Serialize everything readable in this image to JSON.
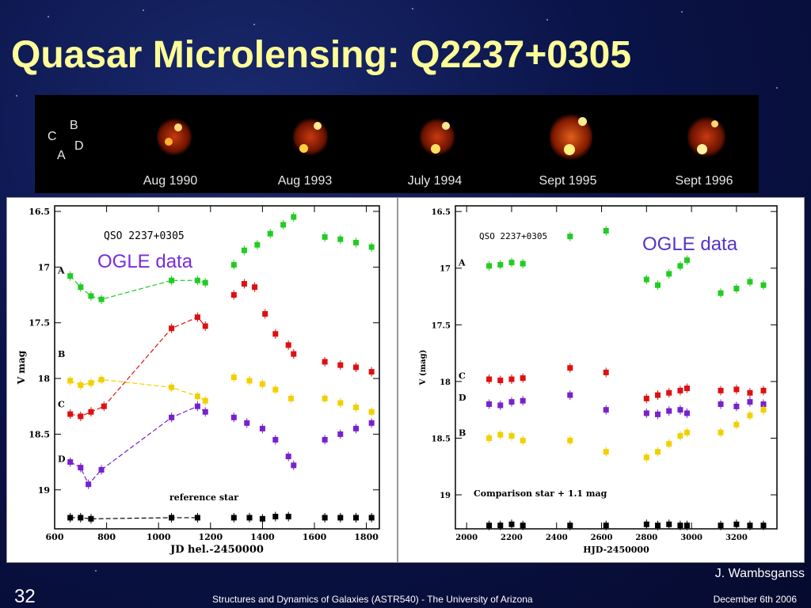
{
  "slide": {
    "title": "Quasar Microlensing: Q2237+0305",
    "credit": "J. Wambsganss",
    "number": "32",
    "footer_course": "Structures and Dynamics of Galaxies (ASTR540) - The University of Arizona",
    "footer_date": "December 6th 2006"
  },
  "image_strip": {
    "image_labels": [
      "B",
      "C",
      "D",
      "A"
    ],
    "frames": [
      {
        "caption": "Aug 1990"
      },
      {
        "caption": "Aug 1993"
      },
      {
        "caption": "July 1994"
      },
      {
        "caption": "Sept 1995"
      },
      {
        "caption": "Sept 1996"
      }
    ]
  },
  "chart_data": [
    {
      "type": "scatter",
      "title": "QSO 2237+0305",
      "annotation": "OGLE data",
      "annotation_color": "#7a2be0",
      "xlabel": "JD hel.-2450000",
      "ylabel": "V mag",
      "xlim": [
        600,
        1850
      ],
      "ylim": [
        16.45,
        19.35
      ],
      "y_inverted": true,
      "xticks": [
        600,
        800,
        1000,
        1200,
        1400,
        1600,
        1800
      ],
      "yticks": [
        "16.5",
        "17",
        "17.5",
        "18",
        "18.5",
        "19"
      ],
      "reference_label": "reference star",
      "series": [
        {
          "name": "A",
          "color": "#22cc22",
          "points": [
            [
              660,
              17.08
            ],
            [
              700,
              17.18
            ],
            [
              740,
              17.26
            ],
            [
              780,
              17.29
            ],
            [
              1050,
              17.12
            ],
            [
              1150,
              17.12
            ],
            [
              1180,
              17.14
            ],
            [
              1290,
              16.98
            ],
            [
              1330,
              16.85
            ],
            [
              1380,
              16.8
            ],
            [
              1430,
              16.7
            ],
            [
              1480,
              16.62
            ],
            [
              1520,
              16.55
            ],
            [
              1640,
              16.73
            ],
            [
              1700,
              16.75
            ],
            [
              1760,
              16.78
            ],
            [
              1820,
              16.82
            ]
          ]
        },
        {
          "name": "B",
          "color": "#f2d000",
          "points": [
            [
              660,
              18.02
            ],
            [
              700,
              18.06
            ],
            [
              740,
              18.04
            ],
            [
              780,
              18.01
            ],
            [
              1050,
              18.08
            ],
            [
              1150,
              18.16
            ],
            [
              1180,
              18.2
            ],
            [
              1290,
              17.99
            ],
            [
              1350,
              18.02
            ],
            [
              1400,
              18.05
            ],
            [
              1450,
              18.1
            ],
            [
              1510,
              18.18
            ],
            [
              1640,
              18.18
            ],
            [
              1700,
              18.22
            ],
            [
              1760,
              18.26
            ],
            [
              1820,
              18.3
            ]
          ]
        },
        {
          "name": "C",
          "color": "#dd1111",
          "points": [
            [
              660,
              18.32
            ],
            [
              700,
              18.34
            ],
            [
              740,
              18.3
            ],
            [
              790,
              18.25
            ],
            [
              1050,
              17.55
            ],
            [
              1150,
              17.45
            ],
            [
              1180,
              17.53
            ],
            [
              1290,
              17.25
            ],
            [
              1330,
              17.15
            ],
            [
              1370,
              17.18
            ],
            [
              1410,
              17.42
            ],
            [
              1450,
              17.6
            ],
            [
              1500,
              17.7
            ],
            [
              1520,
              17.78
            ],
            [
              1640,
              17.85
            ],
            [
              1700,
              17.88
            ],
            [
              1760,
              17.9
            ],
            [
              1820,
              17.94
            ]
          ]
        },
        {
          "name": "D",
          "color": "#7722cc",
          "points": [
            [
              660,
              18.75
            ],
            [
              700,
              18.8
            ],
            [
              730,
              18.95
            ],
            [
              780,
              18.82
            ],
            [
              1050,
              18.35
            ],
            [
              1150,
              18.25
            ],
            [
              1180,
              18.3
            ],
            [
              1290,
              18.35
            ],
            [
              1340,
              18.4
            ],
            [
              1400,
              18.45
            ],
            [
              1450,
              18.55
            ],
            [
              1500,
              18.7
            ],
            [
              1520,
              18.78
            ],
            [
              1640,
              18.55
            ],
            [
              1700,
              18.5
            ],
            [
              1760,
              18.45
            ],
            [
              1820,
              18.4
            ]
          ]
        },
        {
          "name": "reference star",
          "color": "#000000",
          "points": [
            [
              660,
              19.25
            ],
            [
              700,
              19.25
            ],
            [
              740,
              19.26
            ],
            [
              1050,
              19.25
            ],
            [
              1150,
              19.25
            ],
            [
              1290,
              19.25
            ],
            [
              1350,
              19.25
            ],
            [
              1400,
              19.26
            ],
            [
              1450,
              19.24
            ],
            [
              1500,
              19.24
            ],
            [
              1640,
              19.25
            ],
            [
              1700,
              19.25
            ],
            [
              1760,
              19.25
            ],
            [
              1820,
              19.25
            ]
          ]
        }
      ]
    },
    {
      "type": "scatter",
      "title": "QSO 2237+0305",
      "annotation": "OGLE data",
      "annotation_color": "#5533cc",
      "xlabel": "HJD-2450000",
      "ylabel": "V (mag)",
      "xlim": [
        1950,
        3380
      ],
      "ylim": [
        16.45,
        19.3
      ],
      "y_inverted": true,
      "xticks": [
        2000,
        2200,
        2400,
        2600,
        2800,
        3000,
        3200
      ],
      "yticks": [
        "16.5",
        "17",
        "17.5",
        "18",
        "18.5",
        "19"
      ],
      "reference_label": "Comparison star + 1.1 mag",
      "series": [
        {
          "name": "A",
          "color": "#22cc22",
          "points": [
            [
              2100,
              16.98
            ],
            [
              2150,
              16.97
            ],
            [
              2200,
              16.95
            ],
            [
              2250,
              16.96
            ],
            [
              2460,
              16.72
            ],
            [
              2620,
              16.67
            ],
            [
              2800,
              17.1
            ],
            [
              2850,
              17.15
            ],
            [
              2900,
              17.05
            ],
            [
              2950,
              16.98
            ],
            [
              2980,
              16.93
            ],
            [
              3130,
              17.22
            ],
            [
              3200,
              17.18
            ],
            [
              3260,
              17.12
            ],
            [
              3320,
              17.15
            ]
          ]
        },
        {
          "name": "C",
          "color": "#dd1111",
          "points": [
            [
              2100,
              17.98
            ],
            [
              2150,
              17.99
            ],
            [
              2200,
              17.98
            ],
            [
              2250,
              17.97
            ],
            [
              2460,
              17.88
            ],
            [
              2620,
              17.92
            ],
            [
              2800,
              18.15
            ],
            [
              2850,
              18.12
            ],
            [
              2900,
              18.1
            ],
            [
              2950,
              18.08
            ],
            [
              2980,
              18.06
            ],
            [
              3130,
              18.08
            ],
            [
              3200,
              18.07
            ],
            [
              3260,
              18.1
            ],
            [
              3320,
              18.08
            ]
          ]
        },
        {
          "name": "D",
          "color": "#7722cc",
          "points": [
            [
              2100,
              18.2
            ],
            [
              2150,
              18.21
            ],
            [
              2200,
              18.18
            ],
            [
              2250,
              18.17
            ],
            [
              2460,
              18.12
            ],
            [
              2620,
              18.25
            ],
            [
              2800,
              18.28
            ],
            [
              2850,
              18.29
            ],
            [
              2900,
              18.26
            ],
            [
              2950,
              18.25
            ],
            [
              2980,
              18.28
            ],
            [
              3130,
              18.2
            ],
            [
              3200,
              18.22
            ],
            [
              3260,
              18.18
            ],
            [
              3320,
              18.2
            ]
          ]
        },
        {
          "name": "B",
          "color": "#f2d000",
          "points": [
            [
              2100,
              18.5
            ],
            [
              2150,
              18.47
            ],
            [
              2200,
              18.48
            ],
            [
              2250,
              18.52
            ],
            [
              2460,
              18.52
            ],
            [
              2620,
              18.62
            ],
            [
              2800,
              18.67
            ],
            [
              2850,
              18.62
            ],
            [
              2900,
              18.55
            ],
            [
              2950,
              18.48
            ],
            [
              2980,
              18.45
            ],
            [
              3130,
              18.45
            ],
            [
              3200,
              18.38
            ],
            [
              3260,
              18.3
            ],
            [
              3320,
              18.25
            ]
          ]
        },
        {
          "name": "Comparison star + 1.1 mag",
          "color": "#000000",
          "points": [
            [
              2100,
              19.27
            ],
            [
              2150,
              19.27
            ],
            [
              2200,
              19.26
            ],
            [
              2250,
              19.27
            ],
            [
              2460,
              19.27
            ],
            [
              2620,
              19.27
            ],
            [
              2800,
              19.26
            ],
            [
              2850,
              19.27
            ],
            [
              2900,
              19.26
            ],
            [
              2950,
              19.27
            ],
            [
              2980,
              19.27
            ],
            [
              3130,
              19.27
            ],
            [
              3200,
              19.26
            ],
            [
              3260,
              19.27
            ],
            [
              3320,
              19.27
            ]
          ]
        }
      ]
    }
  ]
}
